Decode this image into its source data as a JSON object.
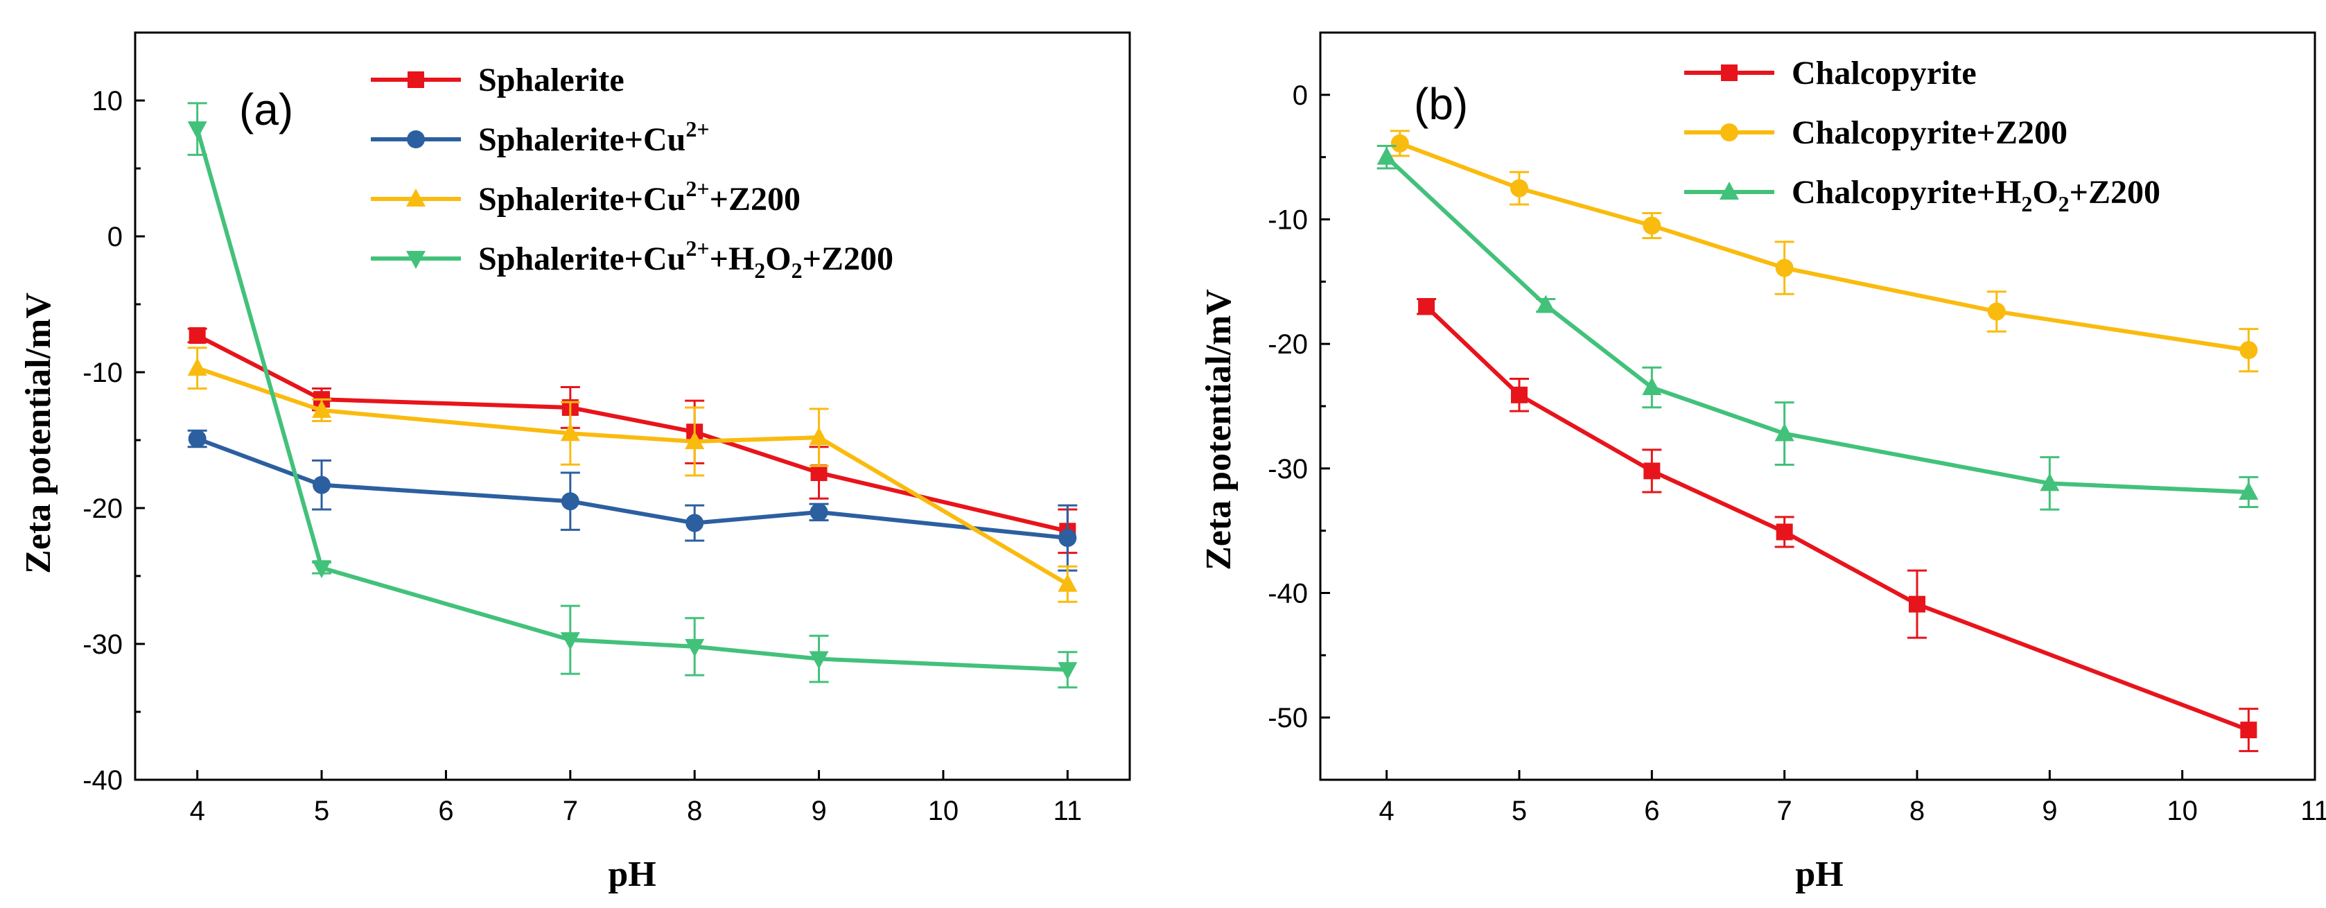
{
  "chart_data": [
    {
      "type": "line",
      "panel_label": "(a)",
      "xlabel": "pH",
      "ylabel": "Zeta potential/mV",
      "xlim": [
        3.5,
        11.5
      ],
      "ylim": [
        -40,
        15
      ],
      "xticks": [
        4,
        5,
        6,
        7,
        8,
        9,
        10,
        11
      ],
      "yticks": [
        -40,
        -30,
        -20,
        -10,
        0,
        10
      ],
      "legend_position": "top-right",
      "series": [
        {
          "name": "Sphalerite",
          "legend_parts": [
            {
              "t": "Sphalerite"
            }
          ],
          "color": "#e8141b",
          "marker": "square",
          "x": [
            4,
            5,
            7,
            8,
            9,
            11
          ],
          "y": [
            -7.3,
            -12.0,
            -12.6,
            -14.4,
            -17.4,
            -21.7
          ],
          "err": [
            0.5,
            0.8,
            1.5,
            2.3,
            1.9,
            1.6
          ]
        },
        {
          "name": "Sphalerite+Cu2+",
          "legend_parts": [
            {
              "t": "Sphalerite+Cu"
            },
            {
              "t": "2+",
              "s": "sup"
            }
          ],
          "color": "#2c5fa0",
          "marker": "circle",
          "x": [
            4,
            5,
            7,
            8,
            9,
            11
          ],
          "y": [
            -14.9,
            -18.3,
            -19.5,
            -21.1,
            -20.3,
            -22.2
          ],
          "err": [
            0.6,
            1.8,
            2.1,
            1.3,
            0.6,
            2.4
          ]
        },
        {
          "name": "Sphalerite+Cu2++Z200",
          "legend_parts": [
            {
              "t": "Sphalerite+Cu"
            },
            {
              "t": "2+",
              "s": "sup"
            },
            {
              "t": "+Z200"
            }
          ],
          "color": "#fabb0f",
          "marker": "triangle-up",
          "x": [
            4,
            5,
            7,
            8,
            9,
            11
          ],
          "y": [
            -9.7,
            -12.8,
            -14.5,
            -15.1,
            -14.8,
            -25.6
          ],
          "err": [
            1.5,
            0.8,
            2.3,
            2.5,
            2.1,
            1.3
          ]
        },
        {
          "name": "Sphalerite+Cu2++H2O2+Z200",
          "legend_parts": [
            {
              "t": "Sphalerite+Cu"
            },
            {
              "t": "2+",
              "s": "sup"
            },
            {
              "t": "+H"
            },
            {
              "t": "2",
              "s": "sub"
            },
            {
              "t": "O"
            },
            {
              "t": "2",
              "s": "sub"
            },
            {
              "t": "+Z200"
            }
          ],
          "color": "#42c17a",
          "marker": "triangle-down",
          "x": [
            4,
            5,
            7,
            8,
            9,
            11
          ],
          "y": [
            7.9,
            -24.4,
            -29.7,
            -30.2,
            -31.1,
            -31.9
          ],
          "err": [
            1.9,
            0.4,
            2.5,
            2.1,
            1.7,
            1.3
          ]
        }
      ]
    },
    {
      "type": "line",
      "panel_label": "(b)",
      "xlabel": "pH",
      "ylabel": "Zeta potential/mV",
      "xlim": [
        3.5,
        11
      ],
      "ylim": [
        -55,
        5
      ],
      "xticks": [
        4,
        5,
        6,
        7,
        8,
        9,
        10,
        11
      ],
      "yticks": [
        -50,
        -40,
        -30,
        -20,
        -10,
        0
      ],
      "legend_position": "top-right",
      "series": [
        {
          "name": "Chalcopyrite",
          "legend_parts": [
            {
              "t": "Chalcopyrite"
            }
          ],
          "color": "#e8141b",
          "marker": "square",
          "x": [
            4.3,
            5,
            6,
            7,
            8,
            10.5
          ],
          "y": [
            -17.0,
            -24.1,
            -30.2,
            -35.1,
            -40.9,
            -51.0
          ],
          "err": [
            0.6,
            1.3,
            1.7,
            1.2,
            2.7,
            1.7
          ]
        },
        {
          "name": "Chalcopyrite+Z200",
          "legend_parts": [
            {
              "t": "Chalcopyrite+Z200"
            }
          ],
          "color": "#fabb0f",
          "marker": "circle",
          "x": [
            4.1,
            5,
            6,
            7,
            8.6,
            10.5
          ],
          "y": [
            -3.9,
            -7.5,
            -10.5,
            -13.9,
            -17.4,
            -20.5
          ],
          "err": [
            1.0,
            1.3,
            1.0,
            2.1,
            1.6,
            1.7
          ]
        },
        {
          "name": "Chalcopyrite+H2O2+Z200",
          "legend_parts": [
            {
              "t": "Chalcopyrite+H"
            },
            {
              "t": "2",
              "s": "sub"
            },
            {
              "t": "O"
            },
            {
              "t": "2",
              "s": "sub"
            },
            {
              "t": "+Z200"
            }
          ],
          "color": "#42c17a",
          "marker": "triangle-up",
          "x": [
            4,
            5.2,
            6,
            7,
            9,
            10.5
          ],
          "y": [
            -5.0,
            -16.9,
            -23.5,
            -27.2,
            -31.2,
            -31.9
          ],
          "err": [
            0.9,
            0.5,
            1.6,
            2.5,
            2.1,
            1.2
          ]
        }
      ]
    }
  ]
}
